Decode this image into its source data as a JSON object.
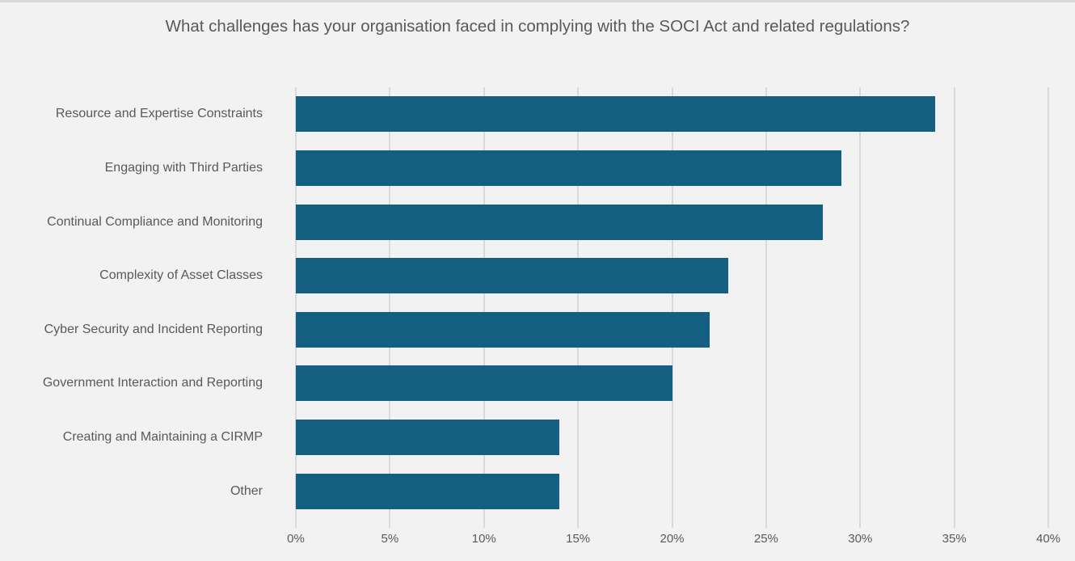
{
  "page": {
    "background_color": "#F2F2F2",
    "top_edge_color": "#DBDBDB"
  },
  "chart_data": {
    "type": "bar",
    "orientation": "horizontal",
    "title": "What challenges has your organisation faced in complying with the SOCI Act and related regulations?",
    "categories": [
      "Resource and Expertise Constraints",
      "Engaging with Third Parties",
      "Continual Compliance and Monitoring",
      "Complexity of Asset Classes",
      "Cyber Security and Incident Reporting",
      "Government Interaction and Reporting",
      "Creating and Maintaining a CIRMP",
      "Other"
    ],
    "values": [
      34,
      29,
      28,
      23,
      22,
      20,
      14,
      14
    ],
    "unit": "%",
    "xlabel": "",
    "ylabel": "",
    "xlim": [
      0,
      40
    ],
    "x_ticks": [
      "0%",
      "5%",
      "10%",
      "15%",
      "20%",
      "25%",
      "30%",
      "35%",
      "40%"
    ],
    "x_tick_values": [
      0,
      5,
      10,
      15,
      20,
      25,
      30,
      35,
      40
    ],
    "grid": true,
    "legend": false,
    "bar_color": "#156082",
    "gridline_color": "#D9D9D9",
    "text_color": "#595959",
    "title_color": "#595959"
  }
}
